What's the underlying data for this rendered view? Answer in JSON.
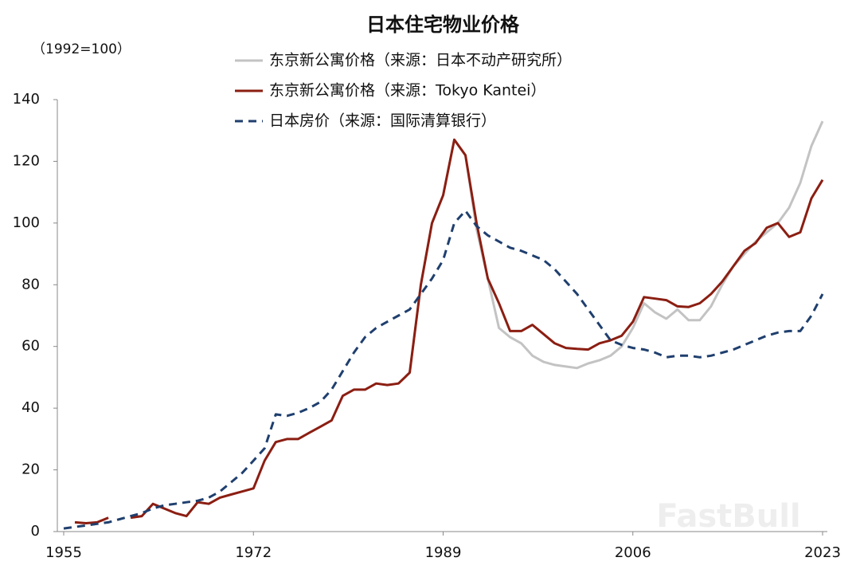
{
  "chart_data": {
    "type": "line",
    "title": "日本住宅物业价格",
    "y_unit": "（1992=100）",
    "watermark": "FastBull",
    "x": [
      1955,
      1956,
      1957,
      1958,
      1959,
      1960,
      1961,
      1962,
      1963,
      1964,
      1965,
      1966,
      1967,
      1968,
      1969,
      1970,
      1971,
      1972,
      1973,
      1974,
      1975,
      1976,
      1977,
      1978,
      1979,
      1980,
      1981,
      1982,
      1983,
      1984,
      1985,
      1986,
      1987,
      1988,
      1989,
      1990,
      1991,
      1992,
      1993,
      1994,
      1995,
      1996,
      1997,
      1998,
      1999,
      2000,
      2001,
      2002,
      2003,
      2004,
      2005,
      2006,
      2007,
      2008,
      2009,
      2010,
      2011,
      2012,
      2013,
      2014,
      2015,
      2016,
      2017,
      2018,
      2019,
      2020,
      2021,
      2022,
      2023
    ],
    "series": [
      {
        "name": "东京新公寓价格（来源：日本不动产研究所）",
        "color": "#c3c3c3",
        "dash": false,
        "values": [
          null,
          null,
          null,
          null,
          null,
          null,
          null,
          null,
          null,
          null,
          null,
          null,
          null,
          null,
          null,
          null,
          null,
          null,
          null,
          null,
          null,
          null,
          null,
          null,
          null,
          null,
          null,
          null,
          null,
          null,
          48,
          51.5,
          80,
          100,
          109,
          127,
          122,
          98,
          82,
          66,
          63,
          61,
          57,
          55,
          54,
          53.5,
          53,
          54.5,
          55.5,
          57,
          60,
          66,
          74,
          71,
          69,
          72,
          68.5,
          68.5,
          73,
          80,
          86,
          90,
          94,
          97,
          100,
          105,
          113,
          125,
          133
        ]
      },
      {
        "name": "东京新公寓价格（来源：Tokyo Kantei）",
        "color": "#8b1e12",
        "dash": false,
        "values": [
          null,
          3,
          2.7,
          3,
          4.5,
          null,
          4.5,
          5,
          9,
          7.5,
          6,
          5,
          9.5,
          9,
          11,
          12,
          13,
          14,
          23,
          29,
          30,
          30,
          32,
          34,
          36,
          44,
          46,
          46,
          48,
          47.5,
          48,
          51.5,
          80,
          100,
          109,
          127,
          122,
          100,
          82,
          74,
          65,
          65,
          67,
          64,
          61,
          59.5,
          59.2,
          59,
          61,
          62,
          63.5,
          68,
          76,
          75.5,
          75,
          73,
          72.8,
          74,
          77,
          81,
          86,
          91,
          93.5,
          98.5,
          100,
          95.5,
          97,
          108,
          114
        ]
      },
      {
        "name": "日本房价（来源：国际清算银行）",
        "color": "#1f3f6e",
        "dash": true,
        "values": [
          1,
          1.5,
          2,
          2.5,
          3,
          4,
          5,
          6,
          7.5,
          8.5,
          9,
          9.5,
          10,
          11,
          13,
          16,
          19,
          23,
          27,
          38,
          37.5,
          38.5,
          40,
          42,
          46,
          52,
          58,
          63,
          66,
          68,
          70,
          72,
          77,
          82,
          88,
          100,
          104,
          99,
          96,
          94,
          92,
          91,
          89.5,
          88,
          85,
          81,
          77,
          72,
          67,
          62,
          60.5,
          59.5,
          59,
          58,
          56.5,
          57,
          57,
          56.5,
          57,
          58,
          59,
          60.5,
          62,
          63.5,
          64.5,
          65,
          65,
          70,
          77
        ]
      }
    ],
    "xlim": [
      1955,
      2023
    ],
    "xticks": [
      1955,
      1972,
      1989,
      2006,
      2023
    ],
    "ylim": [
      0,
      140
    ],
    "yticks": [
      0,
      20,
      40,
      60,
      80,
      100,
      120,
      140
    ],
    "grid": false
  }
}
